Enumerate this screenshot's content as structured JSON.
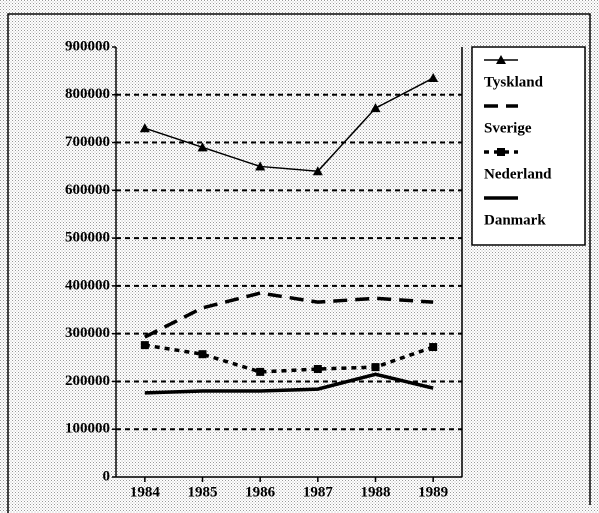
{
  "chart_data": {
    "type": "line",
    "categories": [
      "1984",
      "1985",
      "1986",
      "1987",
      "1988",
      "1989"
    ],
    "series": [
      {
        "name": "Tyskland",
        "color": "#000000",
        "dash": "solid",
        "marker": "triangle",
        "width": 1.5,
        "values": [
          730000,
          690000,
          650000,
          640000,
          772000,
          835000
        ]
      },
      {
        "name": "Sverige",
        "color": "#000000",
        "dash": "dashed",
        "marker": null,
        "width": 3.5,
        "values": [
          293000,
          354000,
          385000,
          366000,
          374000,
          366000
        ]
      },
      {
        "name": "Nederland",
        "color": "#000000",
        "dash": "dotted",
        "marker": "square",
        "width": 3.5,
        "values": [
          276000,
          257000,
          220000,
          226000,
          230000,
          272000
        ]
      },
      {
        "name": "Danmark",
        "color": "#000000",
        "dash": "solid",
        "marker": null,
        "width": 3.5,
        "values": [
          176000,
          180000,
          180000,
          184000,
          215000,
          186000
        ]
      }
    ],
    "ylim": [
      0,
      900000
    ],
    "yticks": [
      0,
      100000,
      200000,
      300000,
      400000,
      500000,
      600000,
      700000,
      800000,
      900000
    ],
    "grid": true,
    "legend": "right"
  }
}
